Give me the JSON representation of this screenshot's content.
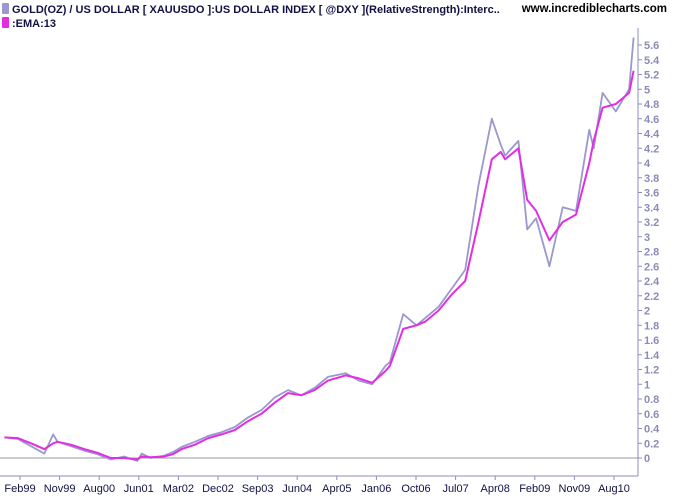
{
  "watermark": "www.incrediblecharts.com",
  "chart_data": {
    "type": "line",
    "legend": [
      {
        "label": "GOLD(OZ) / US DOLLAR [ XAUUSDO ]:US DOLLAR INDEX [ @DXY ](RelativeStrength):Interc..",
        "color": "#9a98cc"
      },
      {
        "label": ":EMA:13",
        "color": "#e22ee2"
      }
    ],
    "x_tick_labels": [
      "Feb99",
      "Nov99",
      "Aug00",
      "Jun01",
      "Mar02",
      "Dec02",
      "Sep03",
      "Jun04",
      "Apr05",
      "Jan06",
      "Oct06",
      "Jul07",
      "Apr08",
      "Feb09",
      "Nov09",
      "Aug10"
    ],
    "y_ticks": [
      0,
      0.2,
      0.4,
      0.6,
      0.8,
      1,
      1.2,
      1.4,
      1.6,
      1.8,
      2,
      2.2,
      2.4,
      2.6,
      2.8,
      3,
      3.2,
      3.4,
      3.6,
      3.8,
      4,
      4.2,
      4.4,
      4.6,
      4.8,
      5,
      5.2,
      5.4,
      5.6
    ],
    "y_tick_labels": [
      "0",
      "0.2",
      "0.4",
      "0.6",
      "0.8",
      "1",
      "1.2",
      "1.4",
      "1.6",
      "1.8",
      "2",
      "2.2",
      "2.4",
      "2.6",
      "2.8",
      "3",
      "3.2",
      "3.4",
      "3.6",
      "3.8",
      "4",
      "4.2",
      "4.4",
      "4.6",
      "4.8",
      "5",
      "5.2",
      "5.4",
      "5.6"
    ],
    "ylim": [
      -0.1,
      5.75
    ],
    "y_axis_position": "right",
    "grid": false,
    "x": [
      "1998-11",
      "1999-02",
      "1999-05",
      "1999-08",
      "1999-10",
      "1999-11",
      "2000-02",
      "2000-05",
      "2000-08",
      "2000-11",
      "2001-02",
      "2001-05",
      "2001-06",
      "2001-08",
      "2001-11",
      "2002-01",
      "2002-03",
      "2002-06",
      "2002-09",
      "2002-12",
      "2003-03",
      "2003-06",
      "2003-09",
      "2003-12",
      "2004-03",
      "2004-06",
      "2004-09",
      "2004-12",
      "2005-04",
      "2005-07",
      "2005-10",
      "2006-01",
      "2006-02",
      "2006-05",
      "2006-08",
      "2006-10",
      "2007-01",
      "2007-04",
      "2007-07",
      "2007-10",
      "2008-01",
      "2008-03",
      "2008-04",
      "2008-07",
      "2008-09",
      "2008-11",
      "2009-02",
      "2009-05",
      "2009-08",
      "2009-11",
      "2009-12",
      "2010-02",
      "2010-05",
      "2010-08",
      "2010-09"
    ],
    "series": [
      {
        "name": "GOLD(OZ) / US DOLLAR [ XAUUSDO ]:US DOLLAR INDEX [ @DXY ](RelativeStrength):Interc..",
        "values": [
          0.28,
          0.26,
          0.16,
          0.06,
          0.32,
          0.22,
          0.16,
          0.1,
          0.05,
          -0.02,
          0.02,
          -0.04,
          0.06,
          0.0,
          0.03,
          0.08,
          0.15,
          0.22,
          0.3,
          0.35,
          0.42,
          0.55,
          0.65,
          0.82,
          0.92,
          0.85,
          0.95,
          1.1,
          1.15,
          1.05,
          1.0,
          1.25,
          1.3,
          1.95,
          1.8,
          1.9,
          2.05,
          2.3,
          2.55,
          3.7,
          4.6,
          4.25,
          4.1,
          4.3,
          3.1,
          3.25,
          2.6,
          3.4,
          3.35,
          4.45,
          4.2,
          4.95,
          4.7,
          5.0,
          5.7
        ]
      },
      {
        "name": ":EMA:13",
        "values": [
          0.28,
          0.27,
          0.2,
          0.12,
          0.2,
          0.22,
          0.18,
          0.12,
          0.07,
          0.0,
          0.0,
          -0.02,
          0.02,
          0.01,
          0.02,
          0.05,
          0.12,
          0.18,
          0.27,
          0.32,
          0.38,
          0.5,
          0.6,
          0.75,
          0.88,
          0.85,
          0.92,
          1.05,
          1.12,
          1.08,
          1.02,
          1.18,
          1.25,
          1.75,
          1.8,
          1.85,
          2.0,
          2.22,
          2.4,
          3.2,
          4.05,
          4.15,
          4.05,
          4.2,
          3.5,
          3.35,
          2.95,
          3.2,
          3.3,
          4.0,
          4.3,
          4.75,
          4.8,
          4.95,
          5.25
        ]
      }
    ]
  }
}
